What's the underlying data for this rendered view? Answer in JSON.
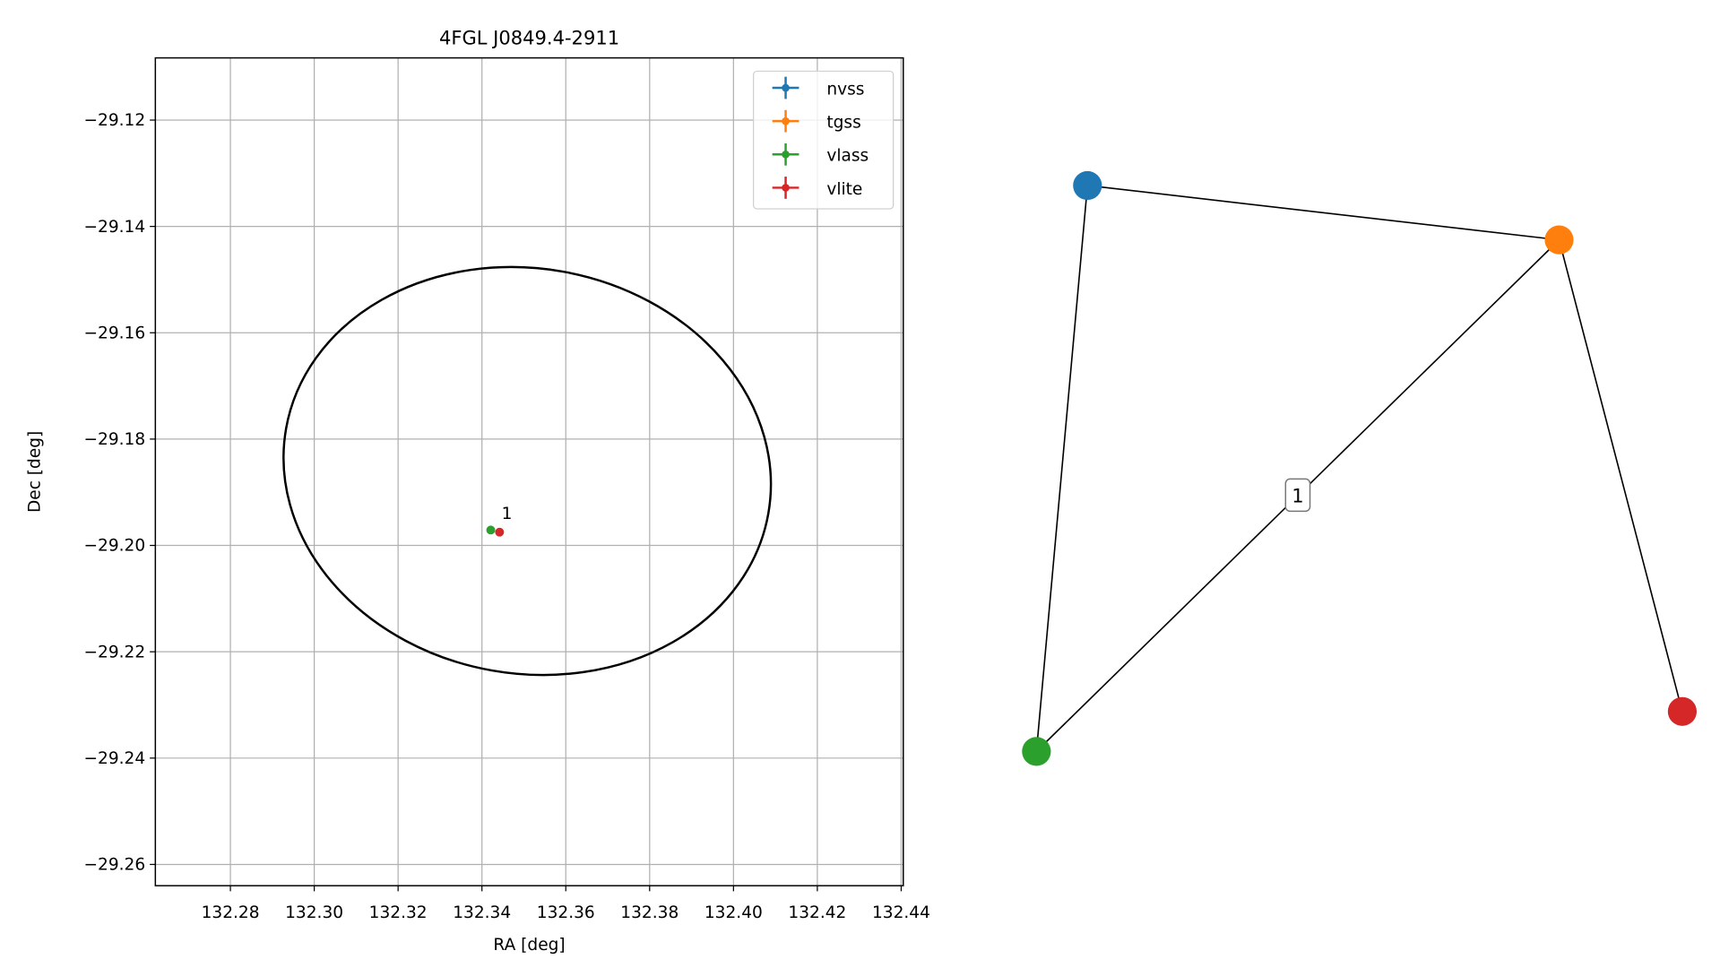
{
  "chart_data": [
    {
      "type": "scatter",
      "title": "4FGL J0849.4-2911",
      "xlabel": "RA [deg]",
      "ylabel": "Dec [deg]",
      "xlim": [
        132.2621,
        132.4405
      ],
      "ylim": [
        -29.264,
        -29.1083
      ],
      "xticks": [
        132.28,
        {
          "value": 132.3,
          "label": "132.30"
        },
        132.32,
        132.34,
        132.36,
        132.38,
        {
          "value": 132.4,
          "label": "132.40"
        },
        132.42,
        132.44
      ],
      "yticks": [
        {
          "value": -29.12,
          "label": "−29.12"
        },
        {
          "value": -29.14,
          "label": "−29.14"
        },
        {
          "value": -29.16,
          "label": "−29.16"
        },
        {
          "value": -29.18,
          "label": "−29.18"
        },
        {
          "value": -29.2,
          "label": "−29.20"
        },
        {
          "value": -29.22,
          "label": "−29.22"
        },
        {
          "value": -29.24,
          "label": "−29.24"
        },
        {
          "value": -29.26,
          "label": "−29.26"
        }
      ],
      "grid": true,
      "legend": "upper right",
      "series": [
        {
          "name": "nvss",
          "color": "#1f77b4",
          "x": [],
          "values": []
        },
        {
          "name": "tgss",
          "color": "#ff7f0e",
          "x": [],
          "values": []
        },
        {
          "name": "vlass",
          "color": "#2ca02c",
          "x": [
            132.3421
          ],
          "values": [
            -29.1971
          ]
        },
        {
          "name": "vlite",
          "color": "#d62728",
          "x": [
            132.3442
          ],
          "values": [
            -29.1975
          ]
        }
      ],
      "ellipse": {
        "center": [
          132.3508,
          -29.186
        ],
        "rx": 0.0584,
        "ry": 0.0381,
        "angle": -10,
        "color": "#000000"
      },
      "annotations": [
        {
          "text": "1",
          "x": 132.3447,
          "y": -29.194
        }
      ]
    },
    {
      "type": "graph",
      "node_colors": [
        "#1f77b4",
        "#ff7f0e",
        "#2ca02c",
        "#d62728"
      ],
      "edges": [
        {
          "source": 0,
          "target": 1
        },
        {
          "source": 0,
          "target": 2
        },
        {
          "source": 1,
          "target": 2,
          "label": "1"
        },
        {
          "source": 1,
          "target": 3
        }
      ]
    }
  ]
}
